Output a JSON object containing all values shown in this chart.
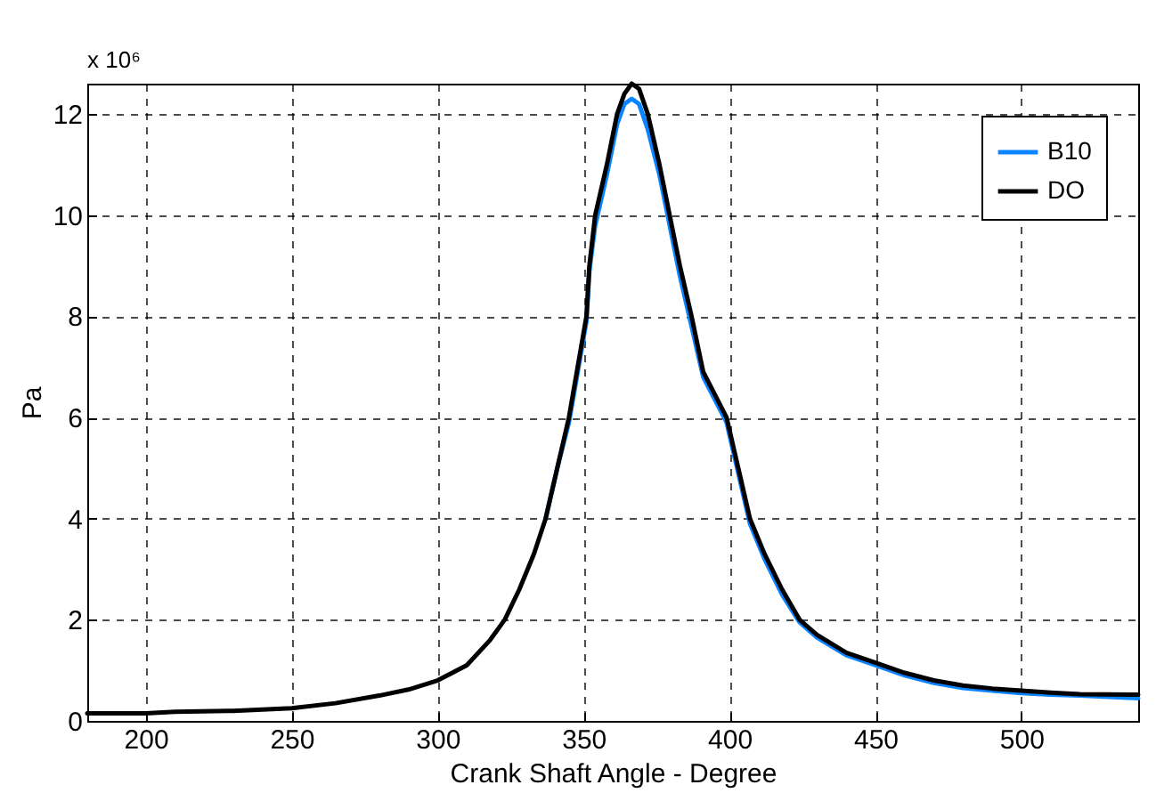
{
  "chart_data": {
    "type": "line",
    "xlabel": "Crank Shaft Angle - Degree",
    "ylabel": "Pa",
    "annotations": [
      "x 10⁶"
    ],
    "x": [
      180,
      200,
      210,
      230,
      250,
      265,
      280,
      290,
      300,
      310,
      318,
      323,
      328,
      333,
      337,
      341,
      345,
      348,
      351,
      352,
      354,
      358,
      361.5,
      364,
      366.5,
      369,
      372,
      376,
      379.5,
      383,
      387,
      391,
      399,
      403,
      407,
      412,
      418,
      424,
      430,
      440,
      450,
      460,
      470,
      480,
      490,
      500,
      510,
      520,
      540
    ],
    "series": [
      {
        "name": "B10",
        "color": "#0a84ff",
        "values": [
          null,
          null,
          null,
          null,
          null,
          null,
          null,
          null,
          null,
          null,
          null,
          null,
          null,
          null,
          4.0,
          5.0,
          5.9,
          6.9,
          7.9,
          8.9,
          9.8,
          10.8,
          11.8,
          12.2,
          12.3,
          12.2,
          11.7,
          10.8,
          9.8,
          8.8,
          7.8,
          6.8,
          5.9,
          4.9,
          3.9,
          3.2,
          2.5,
          1.95,
          1.65,
          1.3,
          1.1,
          0.9,
          0.75,
          0.65,
          0.6,
          0.55,
          0.52,
          0.5,
          0.45
        ]
      },
      {
        "name": "DO",
        "color": "#000000",
        "values": [
          0.15,
          0.15,
          0.18,
          0.2,
          0.25,
          0.35,
          0.5,
          0.62,
          0.8,
          1.1,
          1.6,
          2.0,
          2.6,
          3.3,
          4.0,
          5.0,
          6.0,
          7.0,
          8.0,
          9.0,
          10.0,
          11.0,
          12.0,
          12.4,
          12.6,
          12.5,
          12.0,
          11.0,
          10.0,
          9.0,
          8.0,
          6.9,
          6.0,
          5.0,
          4.0,
          3.3,
          2.6,
          2.0,
          1.7,
          1.35,
          1.15,
          0.95,
          0.8,
          0.7,
          0.64,
          0.6,
          0.56,
          0.53,
          0.52
        ]
      }
    ],
    "xlim": [
      180,
      540
    ],
    "xticks": [
      200,
      250,
      300,
      350,
      400,
      450,
      500
    ],
    "ylim": [
      0,
      12.6
    ],
    "yticks": [
      0,
      2,
      4,
      6,
      8,
      10,
      12
    ],
    "grid": true,
    "legend": "top right",
    "line_style": "solid"
  }
}
